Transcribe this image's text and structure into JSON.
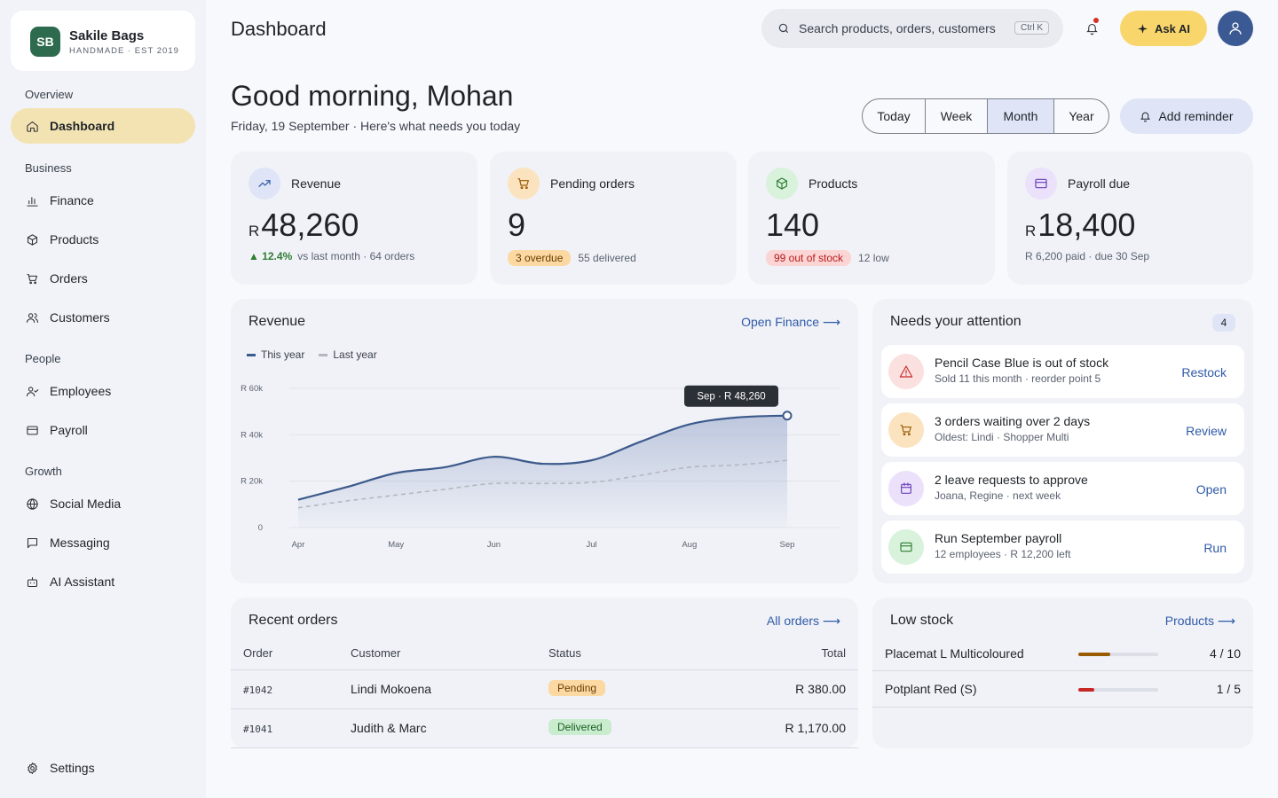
{
  "brand": {
    "logo": "SB",
    "name": "Sakile Bags",
    "tagline": "HANDMADE · EST 2019"
  },
  "sidebar": {
    "sections": {
      "overview": "Overview",
      "business": "Business",
      "people": "People",
      "growth": "Growth"
    },
    "items": {
      "dashboard": {
        "label": "Dashboard",
        "icon": "home-icon"
      },
      "finance": {
        "label": "Finance",
        "icon": "bar-chart-icon"
      },
      "products": {
        "label": "Products",
        "icon": "box-icon"
      },
      "orders": {
        "label": "Orders",
        "icon": "cart-icon"
      },
      "customers": {
        "label": "Customers",
        "icon": "users-icon"
      },
      "employees": {
        "label": "Employees",
        "icon": "user-check-icon"
      },
      "payroll": {
        "label": "Payroll",
        "icon": "wallet-icon"
      },
      "social": {
        "label": "Social Media",
        "icon": "globe-icon"
      },
      "messaging": {
        "label": "Messaging",
        "icon": "message-icon"
      },
      "ai": {
        "label": "AI Assistant",
        "icon": "bot-icon"
      },
      "settings": {
        "label": "Settings",
        "icon": "gear-icon"
      }
    }
  },
  "header": {
    "title": "Dashboard",
    "search_placeholder": "Search products, orders, customers",
    "shortcut": "Ctrl K",
    "ask_ai": "Ask AI"
  },
  "greeting": {
    "title": "Good morning, Mohan",
    "subtitle": "Friday, 19 September · Here's what needs you today",
    "ranges": [
      "Today",
      "Week",
      "Month",
      "Year"
    ],
    "active_range": "Month",
    "add_reminder": "Add reminder"
  },
  "stats": {
    "revenue": {
      "label": "Revenue",
      "currency": "R",
      "value": "48,260",
      "delta": "▲ 12.4%",
      "note": "vs last month · 64 orders"
    },
    "pending": {
      "label": "Pending orders",
      "value": "9",
      "badge": "3 overdue",
      "note": "55 delivered"
    },
    "products": {
      "label": "Products",
      "value": "140",
      "badge": "99 out of stock",
      "note": "12 low"
    },
    "payroll": {
      "label": "Payroll due",
      "currency": "R",
      "value": "18,400",
      "note": "R 6,200 paid · due 30 Sep"
    }
  },
  "revenue_card": {
    "title": "Revenue",
    "link": "Open Finance ⟶",
    "legend_this": "This year",
    "legend_last": "Last year",
    "tooltip": "Sep · R 48,260"
  },
  "chart_data": {
    "type": "line",
    "categories": [
      "Apr",
      "May",
      "Jun",
      "Jul",
      "Aug",
      "Sep"
    ],
    "x": [
      0,
      0.5,
      1,
      1.5,
      2,
      2.5,
      3,
      3.5,
      4,
      4.5,
      5
    ],
    "y_ticks": [
      "0",
      "R 20k",
      "R 40k",
      "R 60k"
    ],
    "ylim": [
      0,
      60000
    ],
    "series": [
      {
        "name": "This year",
        "color": "#3d5a8c",
        "values": [
          12000,
          17500,
          23500,
          26000,
          30500,
          27500,
          29000,
          37000,
          44500,
          47500,
          48260
        ]
      },
      {
        "name": "Last year",
        "color": "#b3b7bf",
        "values": [
          8500,
          11500,
          14000,
          16500,
          19000,
          19000,
          19500,
          22500,
          26000,
          27000,
          29000
        ]
      }
    ]
  },
  "attention": {
    "title": "Needs your attention",
    "count": "4",
    "items": [
      {
        "title": "Pencil Case Blue is out of stock",
        "sub": "Sold 11 this month · reorder point 5",
        "action": "Restock",
        "icon": "warning-icon",
        "bg": "#fbe0e0",
        "color": "#c62828"
      },
      {
        "title": "3 orders waiting over 2 days",
        "sub": "Oldest: Lindi · Shopper Multi",
        "action": "Review",
        "icon": "cart-icon",
        "bg": "#fce3bf",
        "color": "#9a5a00"
      },
      {
        "title": "2 leave requests to approve",
        "sub": "Joana, Regine · next week",
        "action": "Open",
        "icon": "calendar-icon",
        "bg": "#ebe1fb",
        "color": "#6a3fb8"
      },
      {
        "title": "Run September payroll",
        "sub": "12 employees · R 12,200 left",
        "action": "Run",
        "icon": "wallet-icon",
        "bg": "#d8f2dc",
        "color": "#2e7d32"
      }
    ]
  },
  "orders": {
    "title": "Recent orders",
    "link": "All orders ⟶",
    "headers": {
      "order": "Order",
      "customer": "Customer",
      "status": "Status",
      "total": "Total"
    },
    "rows": [
      {
        "id": "#1042",
        "customer": "Lindi Mokoena",
        "status": "Pending",
        "total": "R 380.00"
      },
      {
        "id": "#1041",
        "customer": "Judith & Marc",
        "status": "Delivered",
        "total": "R 1,170.00"
      }
    ]
  },
  "low_stock": {
    "title": "Low stock",
    "link": "Products ⟶",
    "items": [
      {
        "name": "Placemat L Multicoloured",
        "count": "4 / 10",
        "fraction": 0.4,
        "color": "#9a5a00"
      },
      {
        "name": "Potplant Red (S)",
        "count": "1 / 5",
        "fraction": 0.2,
        "color": "#c62828"
      }
    ]
  }
}
